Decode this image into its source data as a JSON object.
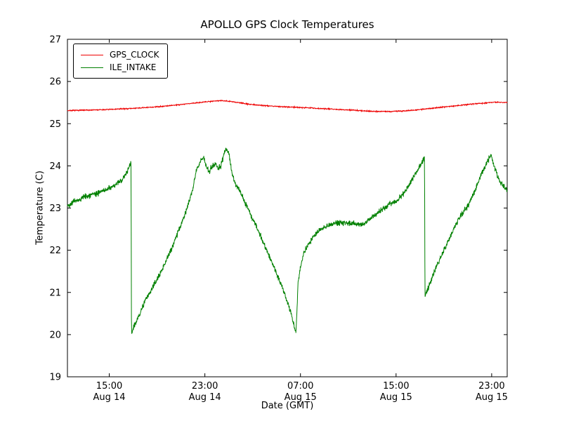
{
  "chart_data": {
    "type": "line",
    "title": "APOLLO GPS Clock Temperatures",
    "xlabel": "Date (GMT)",
    "ylabel": "Temperature (C)",
    "ylim": [
      19,
      27
    ],
    "yticks": [
      19,
      20,
      21,
      22,
      23,
      24,
      25,
      26,
      27
    ],
    "x_domain_hours": [
      11.5,
      48.3
    ],
    "xticks": [
      {
        "hour": 15,
        "time": "15:00",
        "date": "Aug 14"
      },
      {
        "hour": 23,
        "time": "23:00",
        "date": "Aug 14"
      },
      {
        "hour": 31,
        "time": "07:00",
        "date": "Aug 15"
      },
      {
        "hour": 39,
        "time": "15:00",
        "date": "Aug 15"
      },
      {
        "hour": 47,
        "time": "23:00",
        "date": "Aug 15"
      }
    ],
    "legend_position": "upper left",
    "grid": false,
    "series": [
      {
        "name": "GPS_CLOCK",
        "color": "#ee0000",
        "noise": 0.012,
        "seed": 7,
        "keypoints": [
          [
            11.5,
            25.31
          ],
          [
            13.0,
            25.32
          ],
          [
            14.5,
            25.33
          ],
          [
            16.0,
            25.35
          ],
          [
            17.5,
            25.37
          ],
          [
            19.0,
            25.4
          ],
          [
            20.5,
            25.44
          ],
          [
            21.5,
            25.47
          ],
          [
            22.5,
            25.5
          ],
          [
            23.5,
            25.53
          ],
          [
            24.3,
            25.55
          ],
          [
            25.0,
            25.53
          ],
          [
            25.8,
            25.5
          ],
          [
            26.5,
            25.47
          ],
          [
            27.5,
            25.44
          ],
          [
            28.5,
            25.42
          ],
          [
            29.5,
            25.4
          ],
          [
            30.5,
            25.39
          ],
          [
            31.5,
            25.38
          ],
          [
            32.5,
            25.36
          ],
          [
            33.5,
            25.35
          ],
          [
            34.5,
            25.33
          ],
          [
            35.5,
            25.32
          ],
          [
            36.5,
            25.3
          ],
          [
            37.5,
            25.29
          ],
          [
            38.5,
            25.29
          ],
          [
            39.5,
            25.3
          ],
          [
            40.5,
            25.32
          ],
          [
            41.5,
            25.35
          ],
          [
            42.5,
            25.38
          ],
          [
            43.5,
            25.41
          ],
          [
            44.5,
            25.44
          ],
          [
            45.5,
            25.47
          ],
          [
            46.5,
            25.49
          ],
          [
            47.2,
            25.51
          ],
          [
            48.3,
            25.5
          ]
        ]
      },
      {
        "name": "ILE_INTAKE",
        "color": "#008000",
        "noise": 0.065,
        "seed": 42,
        "keypoints": [
          [
            11.5,
            23.05
          ],
          [
            12.0,
            23.15
          ],
          [
            12.5,
            23.2
          ],
          [
            13.0,
            23.28
          ],
          [
            13.5,
            23.3
          ],
          [
            14.0,
            23.35
          ],
          [
            14.5,
            23.42
          ],
          [
            15.0,
            23.45
          ],
          [
            15.5,
            23.55
          ],
          [
            16.0,
            23.65
          ],
          [
            16.4,
            23.8
          ],
          [
            16.75,
            24.05
          ],
          [
            16.82,
            24.1
          ],
          [
            16.86,
            20.0
          ],
          [
            17.0,
            20.15
          ],
          [
            17.5,
            20.45
          ],
          [
            18.0,
            20.8
          ],
          [
            18.5,
            21.05
          ],
          [
            19.0,
            21.3
          ],
          [
            19.5,
            21.6
          ],
          [
            20.0,
            21.9
          ],
          [
            20.5,
            22.25
          ],
          [
            21.0,
            22.6
          ],
          [
            21.5,
            23.0
          ],
          [
            21.9,
            23.35
          ],
          [
            22.3,
            23.9
          ],
          [
            22.6,
            24.1
          ],
          [
            22.9,
            24.2
          ],
          [
            23.1,
            24.0
          ],
          [
            23.35,
            23.85
          ],
          [
            23.6,
            24.0
          ],
          [
            23.85,
            24.05
          ],
          [
            24.1,
            23.95
          ],
          [
            24.35,
            24.0
          ],
          [
            24.6,
            24.3
          ],
          [
            24.8,
            24.4
          ],
          [
            25.0,
            24.3
          ],
          [
            25.2,
            23.95
          ],
          [
            25.5,
            23.6
          ],
          [
            26.0,
            23.35
          ],
          [
            26.5,
            23.05
          ],
          [
            27.0,
            22.75
          ],
          [
            27.5,
            22.45
          ],
          [
            28.0,
            22.1
          ],
          [
            28.5,
            21.8
          ],
          [
            29.0,
            21.45
          ],
          [
            29.5,
            21.1
          ],
          [
            30.0,
            20.7
          ],
          [
            30.3,
            20.4
          ],
          [
            30.55,
            20.1
          ],
          [
            30.62,
            20.05
          ],
          [
            30.8,
            21.2
          ],
          [
            31.0,
            21.6
          ],
          [
            31.3,
            21.95
          ],
          [
            31.7,
            22.15
          ],
          [
            32.0,
            22.3
          ],
          [
            32.5,
            22.45
          ],
          [
            33.0,
            22.55
          ],
          [
            33.5,
            22.6
          ],
          [
            34.0,
            22.65
          ],
          [
            34.5,
            22.65
          ],
          [
            35.0,
            22.65
          ],
          [
            35.5,
            22.62
          ],
          [
            36.0,
            22.6
          ],
          [
            36.5,
            22.65
          ],
          [
            37.0,
            22.8
          ],
          [
            37.5,
            22.9
          ],
          [
            38.0,
            23.0
          ],
          [
            38.5,
            23.1
          ],
          [
            39.0,
            23.15
          ],
          [
            39.5,
            23.3
          ],
          [
            40.0,
            23.5
          ],
          [
            40.5,
            23.75
          ],
          [
            41.0,
            24.0
          ],
          [
            41.3,
            24.15
          ],
          [
            41.38,
            24.2
          ],
          [
            41.42,
            20.9
          ],
          [
            41.7,
            21.1
          ],
          [
            42.0,
            21.35
          ],
          [
            42.5,
            21.7
          ],
          [
            43.0,
            22.0
          ],
          [
            43.5,
            22.3
          ],
          [
            44.0,
            22.6
          ],
          [
            44.5,
            22.85
          ],
          [
            45.0,
            23.05
          ],
          [
            45.5,
            23.35
          ],
          [
            46.0,
            23.7
          ],
          [
            46.4,
            23.95
          ],
          [
            46.8,
            24.2
          ],
          [
            46.95,
            24.25
          ],
          [
            47.2,
            24.0
          ],
          [
            47.5,
            23.75
          ],
          [
            47.8,
            23.6
          ],
          [
            48.3,
            23.4
          ]
        ]
      }
    ]
  }
}
